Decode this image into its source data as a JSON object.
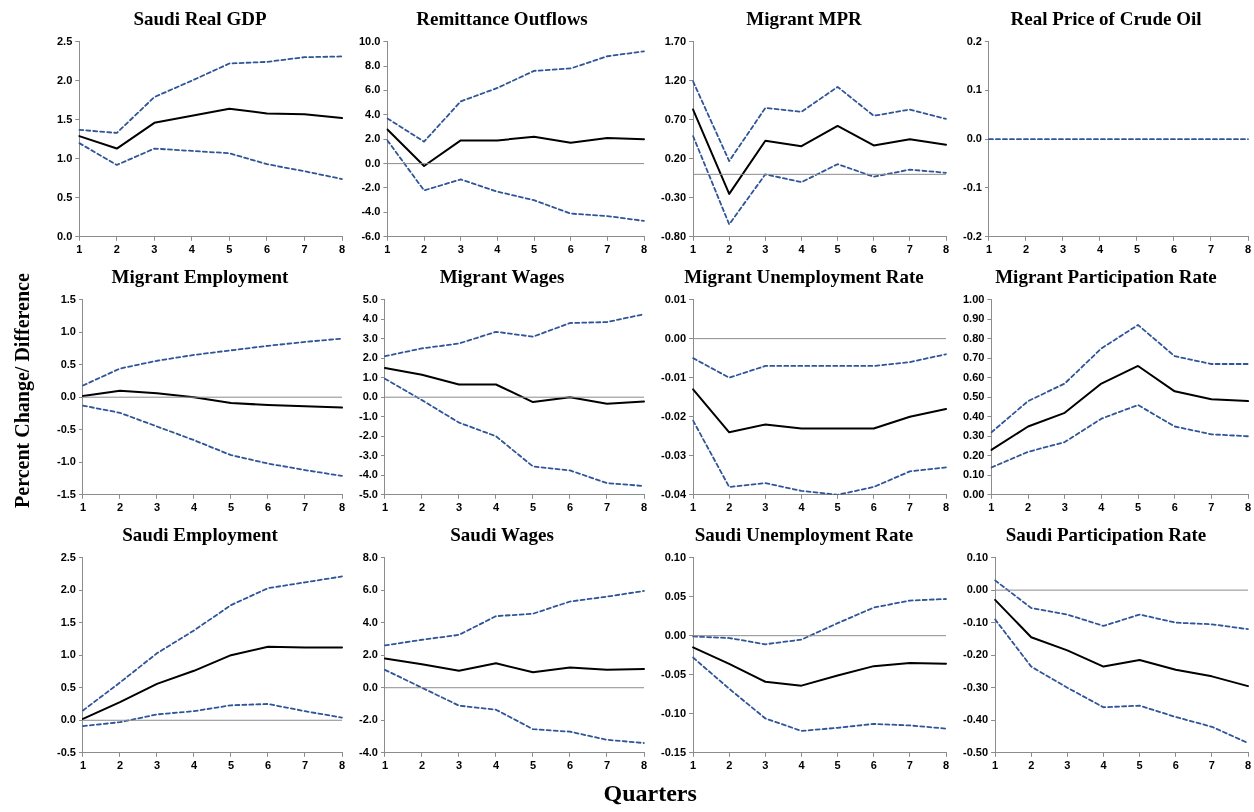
{
  "chart_data": [
    {
      "type": "line",
      "title": "Saudi Real GDP",
      "categories": [
        "1",
        "2",
        "3",
        "4",
        "5",
        "6",
        "7",
        "8"
      ],
      "ylim": [
        0,
        2.5
      ],
      "yticks": [
        {
          "value": 0,
          "label": "0.0"
        },
        0.5,
        {
          "value": 1,
          "label": "1.0"
        },
        1.5,
        {
          "value": 2,
          "label": "2.0"
        },
        2.5
      ],
      "series": [
        {
          "color": "#2f5597",
          "line_style": "dashed",
          "values": [
            1.37,
            1.33,
            1.79,
            2.0,
            2.22,
            2.24,
            2.3,
            2.31
          ]
        },
        {
          "color": "#2f5597",
          "line_style": "dashed",
          "values": [
            1.2,
            0.92,
            1.13,
            1.1,
            1.07,
            0.93,
            0.84,
            0.74
          ]
        },
        {
          "color": "#000000",
          "line_style": "solid",
          "values": [
            1.29,
            1.13,
            1.46,
            1.55,
            1.64,
            1.58,
            1.57,
            1.52
          ]
        }
      ]
    },
    {
      "type": "line",
      "title": "Remittance Outflows",
      "categories": [
        "1",
        "2",
        "3",
        "4",
        "5",
        "6",
        "7",
        "8"
      ],
      "ylim": [
        -6,
        10
      ],
      "yticks": [
        {
          "value": -6,
          "label": "-6.0"
        },
        {
          "value": -4,
          "label": "-4.0"
        },
        {
          "value": -2,
          "label": "-2.0"
        },
        {
          "value": 0,
          "label": "0.0"
        },
        {
          "value": 2,
          "label": "2.0"
        },
        {
          "value": 4,
          "label": "4.0"
        },
        {
          "value": 6,
          "label": "6.0"
        },
        {
          "value": 8,
          "label": "8.0"
        },
        {
          "value": 10,
          "label": "10.0"
        }
      ],
      "ref_lines": [
        {
          "axis": "y",
          "value": 0
        }
      ],
      "series": [
        {
          "color": "#2f5597",
          "line_style": "dashed",
          "values": [
            3.7,
            1.8,
            5.1,
            6.2,
            7.6,
            7.8,
            8.8,
            9.2
          ]
        },
        {
          "color": "#2f5597",
          "line_style": "dashed",
          "values": [
            1.9,
            -2.2,
            -1.3,
            -2.3,
            -3.0,
            -4.1,
            -4.3,
            -4.7
          ]
        },
        {
          "color": "#000000",
          "line_style": "solid",
          "values": [
            2.8,
            -0.2,
            1.9,
            1.9,
            2.2,
            1.7,
            2.1,
            2.0
          ]
        }
      ]
    },
    {
      "type": "line",
      "title": "Migrant MPR",
      "categories": [
        "1",
        "2",
        "3",
        "4",
        "5",
        "6",
        "7",
        "8"
      ],
      "ylim": [
        -0.8,
        1.7
      ],
      "yticks": [
        {
          "value": -0.8,
          "label": "-0.80"
        },
        {
          "value": -0.3,
          "label": "-0.30"
        },
        {
          "value": 0.2,
          "label": "0.20"
        },
        {
          "value": 0.7,
          "label": "0.70"
        },
        {
          "value": 1.2,
          "label": "1.20"
        },
        {
          "value": 1.7,
          "label": "1.70"
        }
      ],
      "ref_lines": [
        {
          "axis": "y",
          "value": 0
        }
      ],
      "series": [
        {
          "color": "#2f5597",
          "line_style": "dashed",
          "values": [
            1.19,
            0.17,
            0.85,
            0.8,
            1.12,
            0.75,
            0.83,
            0.71
          ]
        },
        {
          "color": "#2f5597",
          "line_style": "dashed",
          "values": [
            0.49,
            -0.64,
            0.0,
            -0.1,
            0.13,
            -0.03,
            0.06,
            0.02
          ]
        },
        {
          "color": "#000000",
          "line_style": "solid",
          "values": [
            0.83,
            -0.25,
            0.43,
            0.36,
            0.62,
            0.37,
            0.45,
            0.38
          ]
        }
      ]
    },
    {
      "type": "line",
      "title": "Real Price of Crude Oil",
      "categories": [
        "1",
        "2",
        "3",
        "4",
        "5",
        "6",
        "7",
        "8"
      ],
      "ylim": [
        -0.2,
        0.2
      ],
      "yticks": [
        -0.2,
        -0.1,
        {
          "value": 0,
          "label": "0.0"
        },
        0.1,
        0.2
      ],
      "series": [
        {
          "color": "#2f5597",
          "line_style": "dashed",
          "values": [
            0,
            0,
            0,
            0,
            0,
            0,
            0,
            0
          ]
        }
      ]
    },
    {
      "type": "line",
      "title": "Migrant Employment",
      "ylabel": "Percent Change/ Difference",
      "categories": [
        "1",
        "2",
        "3",
        "4",
        "5",
        "6",
        "7",
        "8"
      ],
      "ylim": [
        -1.5,
        1.5
      ],
      "yticks": [
        -1.5,
        {
          "value": -1,
          "label": "-1.0"
        },
        -0.5,
        {
          "value": 0,
          "label": "0.0"
        },
        0.5,
        {
          "value": 1,
          "label": "1.0"
        },
        1.5
      ],
      "ref_lines": [
        {
          "axis": "y",
          "value": 0
        }
      ],
      "series": [
        {
          "color": "#2f5597",
          "line_style": "dashed",
          "values": [
            0.18,
            0.44,
            0.56,
            0.65,
            0.72,
            0.79,
            0.85,
            0.9
          ]
        },
        {
          "color": "#2f5597",
          "line_style": "dashed",
          "values": [
            -0.13,
            -0.24,
            -0.45,
            -0.66,
            -0.89,
            -1.02,
            -1.12,
            -1.21
          ]
        },
        {
          "color": "#000000",
          "line_style": "solid",
          "values": [
            0.02,
            0.1,
            0.06,
            0.0,
            -0.09,
            -0.12,
            -0.14,
            -0.16
          ]
        }
      ]
    },
    {
      "type": "line",
      "title": "Migrant Wages",
      "categories": [
        "1",
        "2",
        "3",
        "4",
        "5",
        "6",
        "7",
        "8"
      ],
      "ylim": [
        -5,
        5
      ],
      "yticks": [
        {
          "value": -5,
          "label": "-5.0"
        },
        {
          "value": -4,
          "label": "-4.0"
        },
        {
          "value": -3,
          "label": "-3.0"
        },
        {
          "value": -2,
          "label": "-2.0"
        },
        {
          "value": -1,
          "label": "-1.0"
        },
        {
          "value": 0,
          "label": "0.0"
        },
        {
          "value": 1,
          "label": "1.0"
        },
        {
          "value": 2,
          "label": "2.0"
        },
        {
          "value": 3,
          "label": "3.0"
        },
        {
          "value": 4,
          "label": "4.0"
        },
        {
          "value": 5,
          "label": "5.0"
        }
      ],
      "ref_lines": [
        {
          "axis": "y",
          "value": 0
        }
      ],
      "series": [
        {
          "color": "#2f5597",
          "line_style": "dashed",
          "values": [
            2.1,
            2.5,
            2.75,
            3.35,
            3.1,
            3.8,
            3.85,
            4.25
          ]
        },
        {
          "color": "#2f5597",
          "line_style": "dashed",
          "values": [
            0.95,
            -0.15,
            -1.3,
            -2.0,
            -3.55,
            -3.75,
            -4.4,
            -4.55
          ]
        },
        {
          "color": "#000000",
          "line_style": "solid",
          "values": [
            1.5,
            1.15,
            0.65,
            0.65,
            -0.25,
            0.0,
            -0.33,
            -0.22
          ]
        }
      ]
    },
    {
      "type": "line",
      "title": "Migrant Unemployment Rate",
      "categories": [
        "1",
        "2",
        "3",
        "4",
        "5",
        "6",
        "7",
        "8"
      ],
      "ylim": [
        -0.04,
        0.01
      ],
      "yticks": [
        -0.04,
        -0.03,
        -0.02,
        -0.01,
        {
          "value": 0,
          "label": "0.00"
        },
        0.01
      ],
      "ref_lines": [
        {
          "axis": "y",
          "value": 0
        }
      ],
      "series": [
        {
          "color": "#2f5597",
          "line_style": "dashed",
          "values": [
            -0.005,
            -0.01,
            -0.007,
            -0.007,
            -0.007,
            -0.007,
            -0.006,
            -0.004
          ]
        },
        {
          "color": "#2f5597",
          "line_style": "dashed",
          "values": [
            -0.021,
            -0.038,
            -0.037,
            -0.039,
            -0.04,
            -0.038,
            -0.034,
            -0.033
          ]
        },
        {
          "color": "#000000",
          "line_style": "solid",
          "values": [
            -0.013,
            -0.024,
            -0.022,
            -0.023,
            -0.023,
            -0.023,
            -0.02,
            -0.018
          ]
        }
      ]
    },
    {
      "type": "line",
      "title": "Migrant Participation Rate",
      "categories": [
        "1",
        "2",
        "3",
        "4",
        "5",
        "6",
        "7",
        "8"
      ],
      "ylim": [
        0,
        1
      ],
      "yticks": [
        {
          "value": 0,
          "label": "0.00"
        },
        {
          "value": 0.1,
          "label": "0.10"
        },
        {
          "value": 0.2,
          "label": "0.20"
        },
        {
          "value": 0.3,
          "label": "0.30"
        },
        {
          "value": 0.4,
          "label": "0.40"
        },
        {
          "value": 0.5,
          "label": "0.50"
        },
        {
          "value": 0.6,
          "label": "0.60"
        },
        {
          "value": 0.7,
          "label": "0.70"
        },
        {
          "value": 0.8,
          "label": "0.80"
        },
        {
          "value": 0.9,
          "label": "0.90"
        },
        {
          "value": 1,
          "label": "1.00"
        }
      ],
      "series": [
        {
          "color": "#2f5597",
          "line_style": "dashed",
          "values": [
            0.32,
            0.48,
            0.57,
            0.75,
            0.87,
            0.71,
            0.67,
            0.67
          ]
        },
        {
          "color": "#2f5597",
          "line_style": "dashed",
          "values": [
            0.14,
            0.22,
            0.27,
            0.39,
            0.46,
            0.35,
            0.31,
            0.3
          ]
        },
        {
          "color": "#000000",
          "line_style": "solid",
          "values": [
            0.23,
            0.35,
            0.42,
            0.57,
            0.66,
            0.53,
            0.49,
            0.48
          ]
        }
      ]
    },
    {
      "type": "line",
      "title": "Saudi Employment",
      "categories": [
        "1",
        "2",
        "3",
        "4",
        "5",
        "6",
        "7",
        "8"
      ],
      "ylim": [
        -0.5,
        2.5
      ],
      "yticks": [
        -0.5,
        {
          "value": 0,
          "label": "0.0"
        },
        0.5,
        {
          "value": 1,
          "label": "1.0"
        },
        1.5,
        {
          "value": 2,
          "label": "2.0"
        },
        2.5
      ],
      "ref_lines": [
        {
          "axis": "y",
          "value": 0
        }
      ],
      "series": [
        {
          "color": "#2f5597",
          "line_style": "dashed",
          "values": [
            0.15,
            0.58,
            1.03,
            1.38,
            1.77,
            2.03,
            2.12,
            2.21
          ]
        },
        {
          "color": "#2f5597",
          "line_style": "dashed",
          "values": [
            -0.09,
            -0.03,
            0.09,
            0.14,
            0.23,
            0.25,
            0.14,
            0.04
          ]
        },
        {
          "color": "#000000",
          "line_style": "solid",
          "values": [
            0.02,
            0.28,
            0.56,
            0.76,
            1.0,
            1.13,
            1.12,
            1.12
          ]
        }
      ]
    },
    {
      "type": "line",
      "title": "Saudi Wages",
      "xlabel": "Quarters",
      "categories": [
        "1",
        "2",
        "3",
        "4",
        "5",
        "6",
        "7",
        "8"
      ],
      "ylim": [
        -4,
        8
      ],
      "yticks": [
        {
          "value": -4,
          "label": "-4.0"
        },
        {
          "value": -2,
          "label": "-2.0"
        },
        {
          "value": 0,
          "label": "0.0"
        },
        {
          "value": 2,
          "label": "2.0"
        },
        {
          "value": 4,
          "label": "4.0"
        },
        {
          "value": 6,
          "label": "6.0"
        },
        {
          "value": 8,
          "label": "8.0"
        }
      ],
      "ref_lines": [
        {
          "axis": "y",
          "value": 0
        }
      ],
      "series": [
        {
          "color": "#2f5597",
          "line_style": "dashed",
          "values": [
            2.6,
            2.95,
            3.25,
            4.4,
            4.55,
            5.3,
            5.6,
            5.95
          ]
        },
        {
          "color": "#2f5597",
          "line_style": "dashed",
          "values": [
            1.1,
            0.0,
            -1.1,
            -1.35,
            -2.55,
            -2.7,
            -3.2,
            -3.4
          ]
        },
        {
          "color": "#000000",
          "line_style": "solid",
          "values": [
            1.8,
            1.45,
            1.05,
            1.5,
            0.95,
            1.25,
            1.1,
            1.15
          ]
        }
      ]
    },
    {
      "type": "line",
      "title": "Saudi Unemployment Rate",
      "categories": [
        "1",
        "2",
        "3",
        "4",
        "5",
        "6",
        "7",
        "8"
      ],
      "ylim": [
        -0.15,
        0.1
      ],
      "yticks": [
        -0.15,
        {
          "value": -0.1,
          "label": "-0.10"
        },
        -0.05,
        {
          "value": 0,
          "label": "0.00"
        },
        0.05,
        {
          "value": 0.1,
          "label": "0.10"
        }
      ],
      "ref_lines": [
        {
          "axis": "y",
          "value": 0
        }
      ],
      "series": [
        {
          "color": "#2f5597",
          "line_style": "dashed",
          "values": [
            -0.001,
            -0.003,
            -0.011,
            -0.005,
            0.016,
            0.036,
            0.045,
            0.047
          ]
        },
        {
          "color": "#2f5597",
          "line_style": "dashed",
          "values": [
            -0.028,
            -0.068,
            -0.106,
            -0.122,
            -0.118,
            -0.113,
            -0.115,
            -0.119
          ]
        },
        {
          "color": "#000000",
          "line_style": "solid",
          "values": [
            -0.015,
            -0.036,
            -0.059,
            -0.064,
            -0.051,
            -0.039,
            -0.035,
            -0.036
          ]
        }
      ]
    },
    {
      "type": "line",
      "title": "Saudi Participation Rate",
      "categories": [
        "1",
        "2",
        "3",
        "4",
        "5",
        "6",
        "7",
        "8"
      ],
      "ylim": [
        -0.5,
        0.1
      ],
      "yticks": [
        {
          "value": -0.5,
          "label": "-0.50"
        },
        {
          "value": -0.4,
          "label": "-0.40"
        },
        {
          "value": -0.3,
          "label": "-0.30"
        },
        {
          "value": -0.2,
          "label": "-0.20"
        },
        {
          "value": -0.1,
          "label": "-0.10"
        },
        {
          "value": 0,
          "label": "0.00"
        },
        {
          "value": 0.1,
          "label": "0.10"
        }
      ],
      "ref_lines": [
        {
          "axis": "y",
          "value": 0
        }
      ],
      "series": [
        {
          "color": "#2f5597",
          "line_style": "dashed",
          "values": [
            0.03,
            -0.055,
            -0.075,
            -0.11,
            -0.075,
            -0.1,
            -0.105,
            -0.12
          ]
        },
        {
          "color": "#2f5597",
          "line_style": "dashed",
          "values": [
            -0.09,
            -0.235,
            -0.3,
            -0.36,
            -0.355,
            -0.39,
            -0.42,
            -0.47
          ]
        },
        {
          "color": "#000000",
          "line_style": "solid",
          "values": [
            -0.03,
            -0.145,
            -0.185,
            -0.235,
            -0.215,
            -0.245,
            -0.265,
            -0.295
          ]
        }
      ]
    }
  ]
}
